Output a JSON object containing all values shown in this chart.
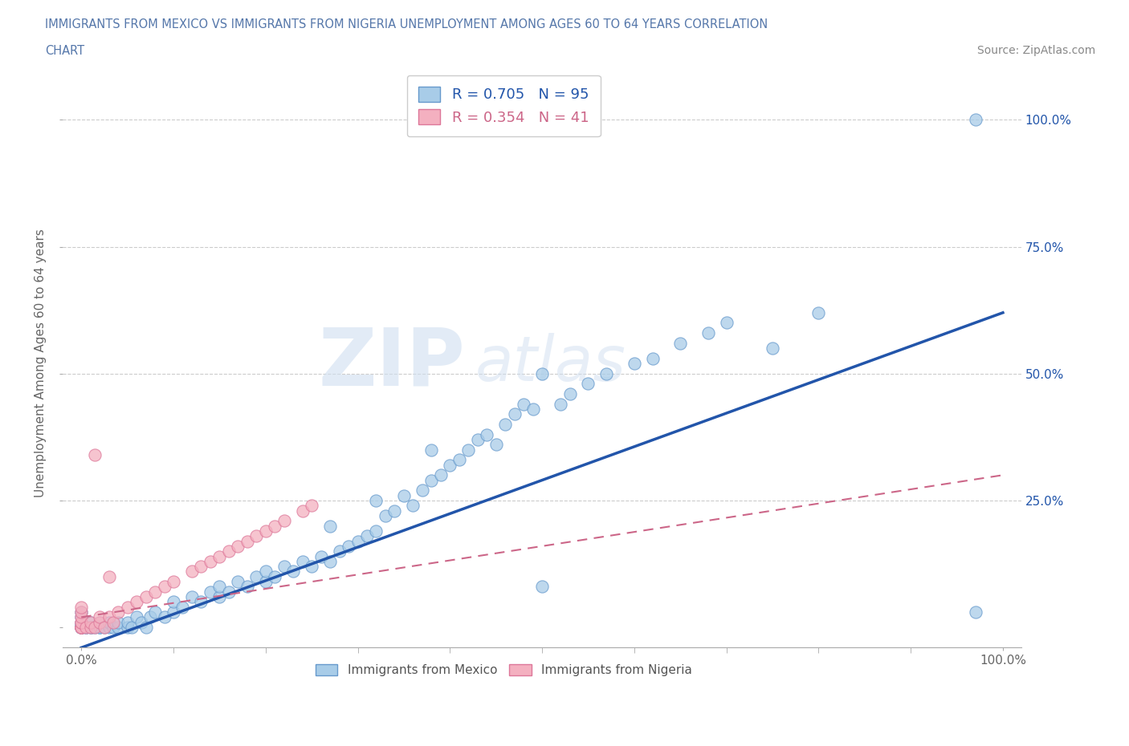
{
  "title_line1": "IMMIGRANTS FROM MEXICO VS IMMIGRANTS FROM NIGERIA UNEMPLOYMENT AMONG AGES 60 TO 64 YEARS CORRELATION",
  "title_line2": "CHART",
  "source_text": "Source: ZipAtlas.com",
  "watermark_zip": "ZIP",
  "watermark_atlas": "atlas",
  "ylabel": "Unemployment Among Ages 60 to 64 years",
  "xlim": [
    -0.02,
    1.02
  ],
  "ylim": [
    -0.04,
    1.08
  ],
  "xtick_positions": [
    0.0,
    1.0
  ],
  "xtick_labels": [
    "0.0%",
    "100.0%"
  ],
  "ytick_right_labels": [
    "25.0%",
    "50.0%",
    "75.0%",
    "100.0%"
  ],
  "ytick_right_vals": [
    0.25,
    0.5,
    0.75,
    1.0
  ],
  "legend_labels": [
    "Immigrants from Mexico",
    "Immigrants from Nigeria"
  ],
  "legend_R": [
    0.705,
    0.354
  ],
  "legend_N": [
    95,
    41
  ],
  "mexico_color": "#a8cce8",
  "nigeria_color": "#f4b0c0",
  "mexico_edge_color": "#6699cc",
  "nigeria_edge_color": "#dd7799",
  "mexico_line_color": "#2255aa",
  "nigeria_line_color": "#cc6688",
  "background_color": "#ffffff",
  "grid_color": "#cccccc",
  "title_color": "#5577aa",
  "mexico_x": [
    0.0,
    0.0,
    0.0,
    0.0,
    0.0,
    0.0,
    0.0,
    0.0,
    0.0,
    0.0,
    0.005,
    0.005,
    0.01,
    0.01,
    0.01,
    0.015,
    0.02,
    0.02,
    0.02,
    0.025,
    0.03,
    0.03,
    0.035,
    0.04,
    0.04,
    0.05,
    0.05,
    0.055,
    0.06,
    0.065,
    0.07,
    0.075,
    0.08,
    0.09,
    0.1,
    0.1,
    0.11,
    0.12,
    0.13,
    0.14,
    0.15,
    0.15,
    0.16,
    0.17,
    0.18,
    0.19,
    0.2,
    0.2,
    0.21,
    0.22,
    0.23,
    0.24,
    0.25,
    0.26,
    0.27,
    0.27,
    0.28,
    0.29,
    0.3,
    0.31,
    0.32,
    0.32,
    0.33,
    0.34,
    0.35,
    0.36,
    0.37,
    0.38,
    0.38,
    0.39,
    0.4,
    0.41,
    0.42,
    0.43,
    0.44,
    0.45,
    0.46,
    0.47,
    0.48,
    0.49,
    0.5,
    0.5,
    0.52,
    0.53,
    0.55,
    0.57,
    0.6,
    0.62,
    0.65,
    0.68,
    0.7,
    0.75,
    0.8,
    0.97,
    0.97
  ],
  "mexico_y": [
    0.0,
    0.0,
    0.0,
    0.0,
    0.0,
    0.0,
    0.005,
    0.01,
    0.02,
    0.03,
    0.0,
    0.0,
    0.0,
    0.0,
    0.01,
    0.0,
    0.0,
    0.0,
    0.01,
    0.0,
    0.0,
    0.01,
    0.0,
    0.0,
    0.01,
    0.0,
    0.01,
    0.0,
    0.02,
    0.01,
    0.0,
    0.02,
    0.03,
    0.02,
    0.03,
    0.05,
    0.04,
    0.06,
    0.05,
    0.07,
    0.06,
    0.08,
    0.07,
    0.09,
    0.08,
    0.1,
    0.09,
    0.11,
    0.1,
    0.12,
    0.11,
    0.13,
    0.12,
    0.14,
    0.13,
    0.2,
    0.15,
    0.16,
    0.17,
    0.18,
    0.19,
    0.25,
    0.22,
    0.23,
    0.26,
    0.24,
    0.27,
    0.29,
    0.35,
    0.3,
    0.32,
    0.33,
    0.35,
    0.37,
    0.38,
    0.36,
    0.4,
    0.42,
    0.44,
    0.43,
    0.5,
    0.08,
    0.44,
    0.46,
    0.48,
    0.5,
    0.52,
    0.53,
    0.56,
    0.58,
    0.6,
    0.55,
    0.62,
    1.0,
    0.03
  ],
  "nigeria_x": [
    0.0,
    0.0,
    0.0,
    0.0,
    0.0,
    0.0,
    0.0,
    0.0,
    0.0,
    0.0,
    0.005,
    0.01,
    0.01,
    0.015,
    0.02,
    0.02,
    0.025,
    0.03,
    0.035,
    0.04,
    0.05,
    0.06,
    0.07,
    0.08,
    0.09,
    0.1,
    0.12,
    0.13,
    0.14,
    0.15,
    0.16,
    0.17,
    0.18,
    0.19,
    0.2,
    0.21,
    0.22,
    0.24,
    0.25,
    0.015,
    0.03
  ],
  "nigeria_y": [
    0.0,
    0.0,
    0.0,
    0.0,
    0.0,
    0.01,
    0.01,
    0.02,
    0.03,
    0.04,
    0.0,
    0.0,
    0.01,
    0.0,
    0.01,
    0.02,
    0.0,
    0.02,
    0.01,
    0.03,
    0.04,
    0.05,
    0.06,
    0.07,
    0.08,
    0.09,
    0.11,
    0.12,
    0.13,
    0.14,
    0.15,
    0.16,
    0.17,
    0.18,
    0.19,
    0.2,
    0.21,
    0.23,
    0.24,
    0.34,
    0.1
  ],
  "mexico_line_x0": 0.0,
  "mexico_line_x1": 1.0,
  "mexico_line_y0": -0.04,
  "mexico_line_y1": 0.62,
  "nigeria_line_x0": 0.0,
  "nigeria_line_x1": 1.0,
  "nigeria_line_y0": 0.02,
  "nigeria_line_y1": 0.3
}
